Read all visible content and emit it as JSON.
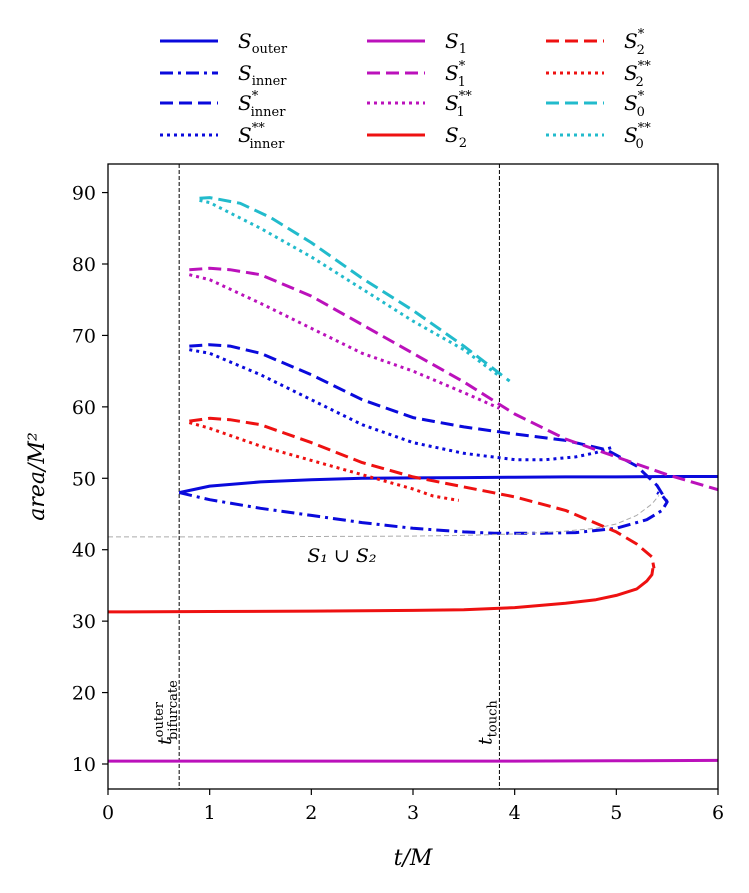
{
  "chart_data": {
    "type": "line",
    "title": "",
    "xlabel": "t/M",
    "ylabel": "area/M²",
    "xlim": [
      0,
      6
    ],
    "ylim": [
      6.5,
      94
    ],
    "grid": false,
    "legend_placement": "top (above plot, 3 columns)",
    "xticks": [
      "0",
      "1",
      "2",
      "3",
      "4",
      "5",
      "6"
    ],
    "yticks": [
      "10",
      "20",
      "30",
      "40",
      "50",
      "60",
      "70",
      "80",
      "90"
    ],
    "colors": {
      "blue": "#0a0adc",
      "magenta": "#bb11bb",
      "red": "#ee1111",
      "cyan": "#22bbcc",
      "gray": "#aaaaaa"
    },
    "series": [
      {
        "name": "S_outer",
        "label_main": "S",
        "label_sub": "outer",
        "label_sup": "",
        "color": "blue",
        "dash": "solid",
        "x": [
          0.7,
          1.0,
          1.5,
          2.0,
          2.5,
          3.0,
          3.5,
          4.0,
          4.5,
          5.0,
          5.5,
          6.0
        ],
        "y": [
          48.0,
          48.9,
          49.5,
          49.8,
          50.0,
          50.05,
          50.1,
          50.15,
          50.2,
          50.2,
          50.25,
          50.25
        ]
      },
      {
        "name": "S_inner",
        "label_main": "S",
        "label_sub": "inner",
        "label_sup": "",
        "color": "blue",
        "dash": "dashdot",
        "x": [
          0.7,
          1.0,
          1.5,
          2.0,
          2.5,
          3.0,
          3.5,
          3.8,
          4.2,
          4.6,
          5.0,
          5.3,
          5.45,
          5.5,
          5.45,
          5.4
        ],
        "y": [
          48.0,
          47.0,
          45.8,
          44.8,
          43.8,
          43.0,
          42.5,
          42.3,
          42.3,
          42.4,
          43.0,
          44.2,
          45.5,
          46.7,
          47.6,
          48.0
        ]
      },
      {
        "name": "S_inner_star",
        "label_main": "S",
        "label_sub": "inner",
        "label_sup": "*",
        "color": "blue",
        "dash": "dashed",
        "x": [
          0.8,
          1.0,
          1.2,
          1.5,
          2.0,
          2.5,
          3.0,
          3.5,
          4.0,
          4.5,
          4.9,
          5.2,
          5.4,
          5.5
        ],
        "y": [
          68.5,
          68.7,
          68.5,
          67.5,
          64.5,
          61.0,
          58.5,
          57.2,
          56.2,
          55.3,
          54.0,
          51.7,
          49.0,
          46.7
        ]
      },
      {
        "name": "S_inner_2star",
        "label_main": "S",
        "label_sub": "inner",
        "label_sup": "**",
        "color": "blue",
        "dash": "dotted",
        "x": [
          0.8,
          1.0,
          1.5,
          2.0,
          2.5,
          3.0,
          3.5,
          4.0,
          4.3,
          4.6,
          4.8,
          4.95
        ],
        "y": [
          68.0,
          67.5,
          64.5,
          61.0,
          57.5,
          55.0,
          53.5,
          52.6,
          52.6,
          53.0,
          53.6,
          54.3
        ]
      },
      {
        "name": "S_1",
        "label_main": "S",
        "label_sub": "1",
        "label_sup": "",
        "color": "magenta",
        "dash": "solid",
        "x": [
          0,
          1,
          2,
          3,
          4,
          5,
          6
        ],
        "y": [
          10.4,
          10.4,
          10.4,
          10.4,
          10.4,
          10.45,
          10.5
        ]
      },
      {
        "name": "S_1_star",
        "label_main": "S",
        "label_sub": "1",
        "label_sup": "*",
        "color": "magenta",
        "dash": "dashed",
        "x": [
          0.8,
          1.0,
          1.2,
          1.5,
          2.0,
          2.5,
          3.0,
          3.5,
          4.0,
          4.5,
          5.0,
          5.5,
          6.0
        ],
        "y": [
          79.2,
          79.4,
          79.2,
          78.5,
          75.5,
          71.5,
          67.5,
          63.5,
          59.0,
          55.5,
          53.0,
          50.5,
          48.4
        ]
      },
      {
        "name": "S_1_2star",
        "label_main": "S",
        "label_sub": "1",
        "label_sup": "**",
        "color": "magenta",
        "dash": "dotted",
        "x": [
          0.8,
          1.0,
          1.5,
          2.0,
          2.5,
          3.0,
          3.5,
          3.85
        ],
        "y": [
          78.5,
          77.8,
          74.5,
          71.0,
          67.5,
          65.0,
          62.0,
          59.8
        ]
      },
      {
        "name": "S_2",
        "label_main": "S",
        "label_sub": "2",
        "label_sup": "",
        "color": "red",
        "dash": "solid",
        "x": [
          0,
          1,
          2,
          3,
          3.5,
          4.0,
          4.5,
          4.8,
          5.0,
          5.2,
          5.3,
          5.35,
          5.36
        ],
        "y": [
          31.3,
          31.35,
          31.4,
          31.5,
          31.6,
          31.9,
          32.5,
          33.0,
          33.6,
          34.5,
          35.6,
          36.5,
          37.4
        ]
      },
      {
        "name": "S_2_star",
        "label_main": "S",
        "label_sub": "2",
        "label_sup": "*",
        "color": "red",
        "dash": "dashed",
        "x": [
          0.8,
          1.0,
          1.2,
          1.5,
          2.0,
          2.5,
          3.0,
          3.5,
          4.0,
          4.5,
          5.0,
          5.2,
          5.35,
          5.37
        ],
        "y": [
          58.0,
          58.4,
          58.2,
          57.5,
          55.0,
          52.2,
          50.2,
          48.8,
          47.4,
          45.5,
          42.5,
          40.8,
          39.0,
          37.4
        ]
      },
      {
        "name": "S_2_2star",
        "label_main": "S",
        "label_sub": "2",
        "label_sup": "**",
        "color": "red",
        "dash": "dotted",
        "x": [
          0.8,
          1.0,
          1.5,
          2.0,
          2.5,
          3.0,
          3.2,
          3.45
        ],
        "y": [
          57.8,
          57.0,
          54.5,
          52.5,
          50.5,
          48.5,
          47.5,
          46.9
        ]
      },
      {
        "name": "S_0_star",
        "label_main": "S",
        "label_sub": "0",
        "label_sup": "*",
        "color": "cyan",
        "dash": "dashed",
        "x": [
          0.9,
          1.0,
          1.3,
          1.6,
          2.0,
          2.5,
          3.0,
          3.5,
          3.95
        ],
        "y": [
          89.2,
          89.3,
          88.5,
          86.5,
          83.0,
          78.0,
          73.5,
          68.5,
          63.6
        ]
      },
      {
        "name": "S_0_2star",
        "label_main": "S",
        "label_sub": "0",
        "label_sup": "**",
        "color": "cyan",
        "dash": "dotted",
        "x": [
          0.9,
          1.0,
          1.5,
          2.0,
          2.5,
          3.0,
          3.5,
          3.85
        ],
        "y": [
          88.9,
          88.6,
          85.0,
          81.0,
          76.5,
          72.0,
          68.0,
          64.3
        ]
      },
      {
        "name": "S1_union_S2",
        "label_main": "",
        "label_sub": "",
        "label_sup": "",
        "color": "gray",
        "dash": "thin-dashed",
        "x": [
          0,
          1,
          2,
          3,
          3.5,
          4.0,
          4.5,
          4.8,
          5.0,
          5.2,
          5.35,
          5.42
        ],
        "y": [
          41.8,
          41.8,
          41.85,
          41.9,
          42.0,
          42.2,
          42.6,
          43.0,
          43.6,
          44.8,
          46.4,
          47.6
        ]
      }
    ],
    "vlines": [
      {
        "name": "t_bifurcate_outer",
        "x": 0.7,
        "label_main": "t",
        "label_sub": "bifurcate",
        "label_sup": "outer"
      },
      {
        "name": "t_touch",
        "x": 3.85,
        "label_main": "t",
        "label_sub": "touch",
        "label_sup": ""
      }
    ],
    "annotations": [
      {
        "name": "union-label",
        "text_main": "S₁ ∪ S₂",
        "x": 2.3,
        "y": 38.3
      }
    ]
  }
}
